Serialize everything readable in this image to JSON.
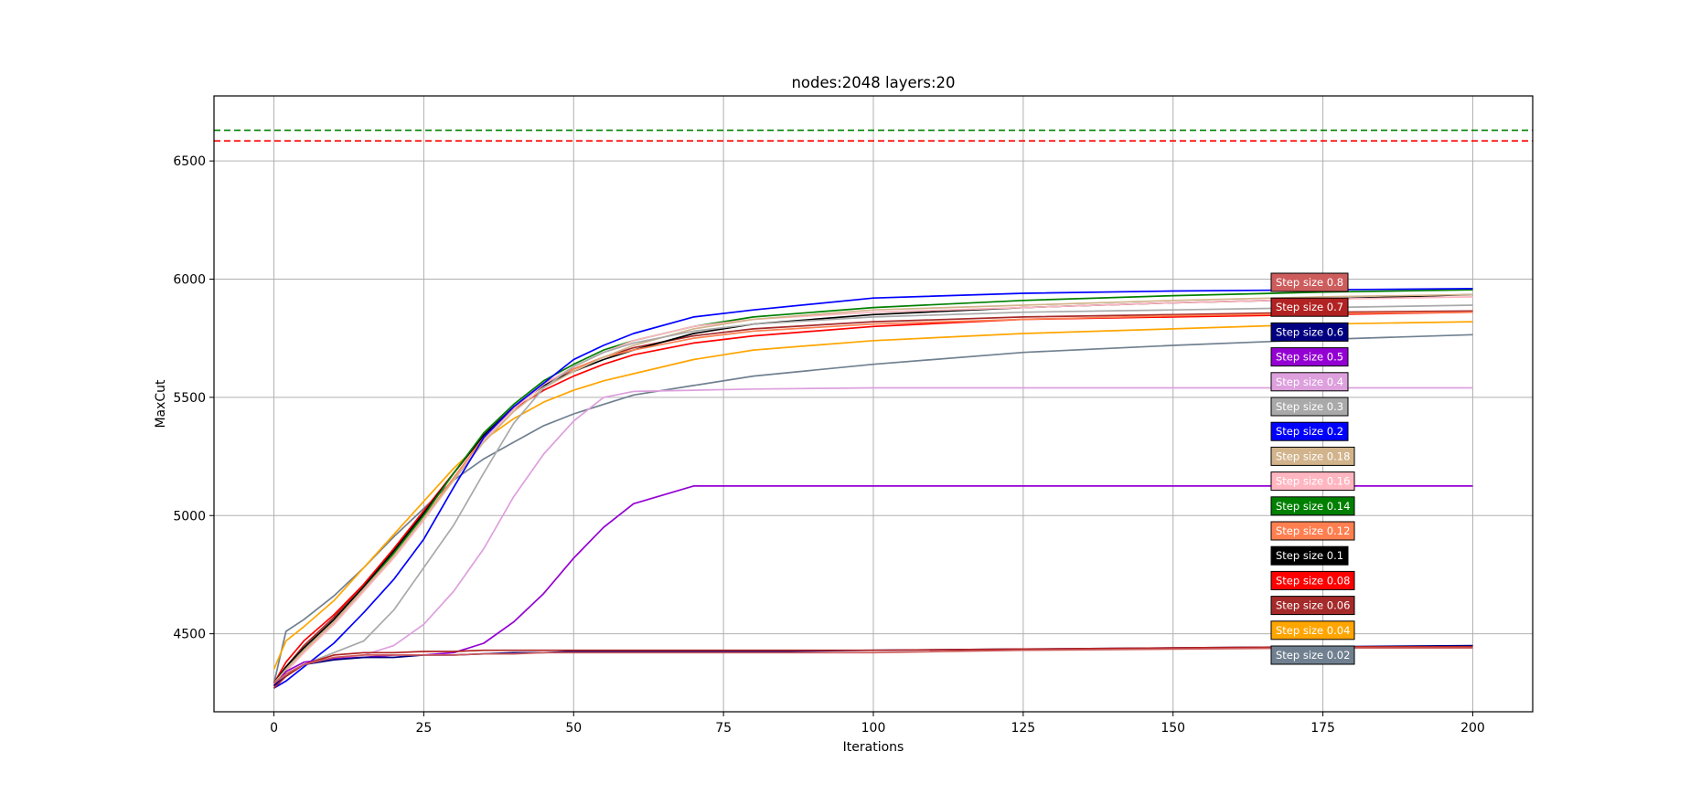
{
  "chart_data": {
    "type": "line",
    "title": "nodes:2048 layers:20",
    "xlabel": "Iterations",
    "ylabel": "MaxCut",
    "xlim": [
      -10,
      210
    ],
    "ylim": [
      4170,
      6775
    ],
    "xticks": [
      0,
      25,
      50,
      75,
      100,
      125,
      150,
      175,
      200
    ],
    "yticks": [
      4500,
      5000,
      5500,
      6000,
      6500
    ],
    "grid": true,
    "legend_position": "right (stacked labels)",
    "reference_lines": [
      {
        "y": 6630,
        "color": "#008000",
        "style": "dashed"
      },
      {
        "y": 6585,
        "color": "#ff0000",
        "style": "dashed"
      }
    ],
    "x": [
      0,
      2,
      5,
      10,
      15,
      20,
      25,
      30,
      35,
      40,
      45,
      50,
      55,
      60,
      70,
      80,
      100,
      125,
      150,
      175,
      200
    ],
    "series": [
      {
        "name": "Step size 0.8",
        "color": "#cd5c5c",
        "values": [
          4290,
          4330,
          4370,
          4400,
          4410,
          4410,
          4410,
          4410,
          4415,
          4415,
          4420,
          4420,
          4420,
          4420,
          4420,
          4420,
          4420,
          4430,
          4435,
          4440,
          4440
        ]
      },
      {
        "name": "Step size 0.7",
        "color": "#b22222",
        "values": [
          4270,
          4320,
          4370,
          4410,
          4420,
          4420,
          4425,
          4425,
          4430,
          4430,
          4430,
          4430,
          4430,
          4430,
          4430,
          4430,
          4430,
          4435,
          4440,
          4445,
          4445
        ]
      },
      {
        "name": "Step size 0.6",
        "color": "#000080",
        "values": [
          4280,
          4320,
          4370,
          4390,
          4400,
          4400,
          4410,
          4410,
          4415,
          4420,
          4420,
          4425,
          4425,
          4425,
          4425,
          4425,
          4430,
          4435,
          4440,
          4445,
          4450
        ]
      },
      {
        "name": "Step size 0.5",
        "color": "#9400d3",
        "values": [
          4280,
          4340,
          4380,
          4395,
          4400,
          4410,
          4410,
          4420,
          4460,
          4550,
          4670,
          4820,
          4950,
          5050,
          5125,
          5125,
          5125,
          5125,
          5125,
          5125,
          5125
        ]
      },
      {
        "name": "Step size 0.4",
        "color": "#dda0dd",
        "values": [
          4280,
          4330,
          4370,
          4390,
          4410,
          4450,
          4540,
          4680,
          4860,
          5080,
          5260,
          5400,
          5500,
          5525,
          5530,
          5535,
          5540,
          5540,
          5540,
          5540,
          5540
        ]
      },
      {
        "name": "Step size 0.3",
        "color": "#a9a9a9",
        "values": [
          4280,
          4330,
          4370,
          4420,
          4470,
          4600,
          4780,
          4960,
          5180,
          5390,
          5540,
          5630,
          5690,
          5730,
          5780,
          5810,
          5840,
          5860,
          5870,
          5880,
          5890
        ]
      },
      {
        "name": "Step size 0.2",
        "color": "#0000ff",
        "values": [
          4270,
          4300,
          4360,
          4460,
          4590,
          4730,
          4900,
          5120,
          5330,
          5460,
          5560,
          5660,
          5720,
          5770,
          5840,
          5870,
          5920,
          5940,
          5950,
          5955,
          5960
        ]
      },
      {
        "name": "Step size 0.18",
        "color": "#d2b48c",
        "values": [
          4290,
          4350,
          4430,
          4550,
          4690,
          4830,
          4990,
          5150,
          5310,
          5440,
          5540,
          5610,
          5670,
          5720,
          5790,
          5830,
          5870,
          5890,
          5910,
          5925,
          5935
        ]
      },
      {
        "name": "Step size 0.16",
        "color": "#ffb6c1",
        "values": [
          4285,
          4340,
          4420,
          4540,
          4680,
          4820,
          4980,
          5150,
          5320,
          5450,
          5555,
          5630,
          5690,
          5740,
          5800,
          5830,
          5860,
          5880,
          5900,
          5915,
          5925
        ]
      },
      {
        "name": "Step size 0.14",
        "color": "#008000",
        "values": [
          4290,
          4350,
          4430,
          4550,
          4690,
          4840,
          5000,
          5180,
          5350,
          5470,
          5570,
          5640,
          5700,
          5740,
          5800,
          5840,
          5880,
          5910,
          5930,
          5945,
          5955
        ]
      },
      {
        "name": "Step size 0.12",
        "color": "#ff7f50",
        "values": [
          4280,
          4340,
          4420,
          4540,
          4680,
          4830,
          4990,
          5160,
          5330,
          5460,
          5560,
          5620,
          5670,
          5700,
          5750,
          5780,
          5810,
          5830,
          5845,
          5855,
          5860
        ]
      },
      {
        "name": "Step size 0.1",
        "color": "#000000",
        "values": [
          4290,
          4360,
          4440,
          4560,
          4700,
          4850,
          5010,
          5180,
          5340,
          5460,
          5550,
          5610,
          5660,
          5700,
          5770,
          5810,
          5850,
          5880,
          5900,
          5915,
          5935
        ]
      },
      {
        "name": "Step size 0.08",
        "color": "#ff0000",
        "values": [
          4290,
          4380,
          4470,
          4580,
          4710,
          4860,
          5020,
          5180,
          5340,
          5450,
          5530,
          5590,
          5640,
          5680,
          5730,
          5760,
          5800,
          5830,
          5840,
          5850,
          5860
        ]
      },
      {
        "name": "Step size 0.06",
        "color": "#a52a2a",
        "values": [
          4280,
          4360,
          4450,
          4570,
          4710,
          4860,
          5020,
          5180,
          5340,
          5460,
          5550,
          5620,
          5670,
          5710,
          5760,
          5790,
          5820,
          5840,
          5850,
          5860,
          5865
        ]
      },
      {
        "name": "Step size 0.04",
        "color": "#ffa500",
        "values": [
          4350,
          4470,
          4530,
          4640,
          4780,
          4920,
          5060,
          5200,
          5320,
          5410,
          5480,
          5530,
          5570,
          5600,
          5660,
          5700,
          5740,
          5770,
          5790,
          5810,
          5820
        ]
      },
      {
        "name": "Step size 0.02",
        "color": "#708090",
        "values": [
          4290,
          4510,
          4560,
          4660,
          4780,
          4910,
          5030,
          5150,
          5240,
          5310,
          5380,
          5430,
          5470,
          5510,
          5550,
          5590,
          5640,
          5690,
          5720,
          5745,
          5765
        ]
      }
    ]
  }
}
